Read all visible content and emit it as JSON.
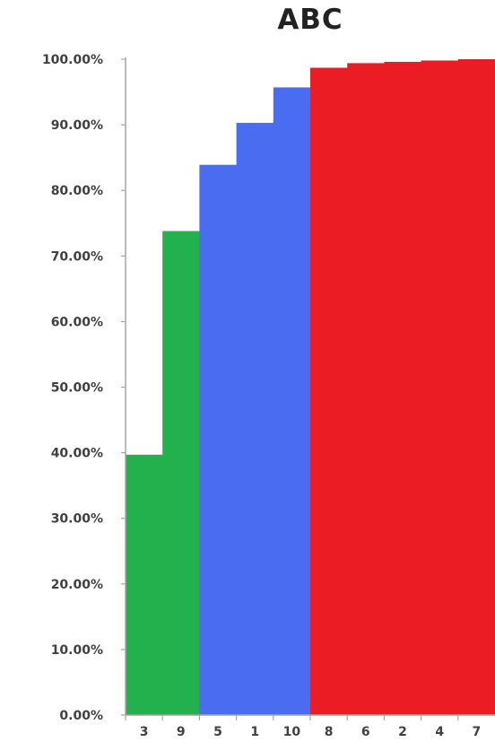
{
  "chart_data": {
    "type": "bar",
    "title": "ABC",
    "xlabel": "",
    "ylabel": "",
    "categories": [
      "3",
      "9",
      "5",
      "1",
      "10",
      "8",
      "6",
      "2",
      "4",
      "7"
    ],
    "values": [
      39.7,
      73.8,
      83.9,
      90.3,
      95.7,
      98.7,
      99.4,
      99.6,
      99.8,
      100.0
    ],
    "class_groups": [
      "A",
      "A",
      "B",
      "B",
      "B",
      "C",
      "C",
      "C",
      "C",
      "C"
    ],
    "group_colors": {
      "A": "#22b14c",
      "B": "#4a6cf0",
      "C": "#ec1c24"
    },
    "y_ticks": [
      "0.00%",
      "10.00%",
      "20.00%",
      "30.00%",
      "40.00%",
      "50.00%",
      "60.00%",
      "70.00%",
      "80.00%",
      "90.00%",
      "100.00%"
    ],
    "ylim": [
      0,
      100
    ],
    "legend": "none",
    "grid": false
  }
}
